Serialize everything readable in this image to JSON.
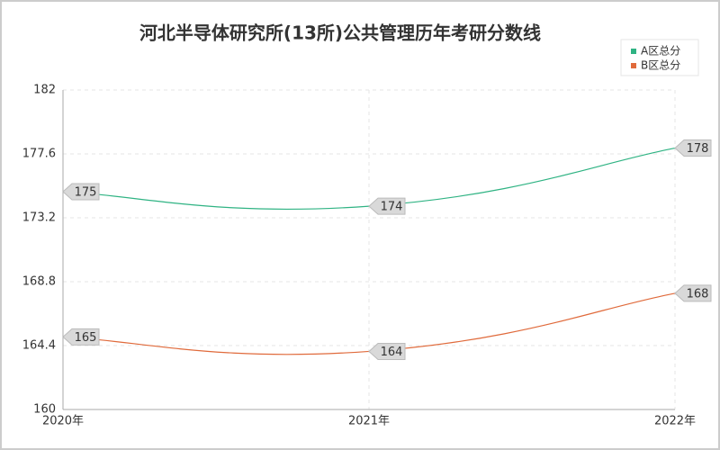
{
  "chart_data": {
    "type": "line",
    "title": "河北半导体研究所(13所)公共管理历年考研分数线",
    "categories": [
      "2020年",
      "2021年",
      "2022年"
    ],
    "series": [
      {
        "name": "A区总分",
        "color": "#2fb383",
        "values": [
          175,
          174,
          178
        ]
      },
      {
        "name": "B区总分",
        "color": "#e06a3b",
        "values": [
          165,
          164,
          168
        ]
      }
    ],
    "ylim": [
      160,
      182
    ],
    "yticks": [
      160,
      164.4,
      168.8,
      173.2,
      177.6,
      182
    ],
    "grid": true,
    "legend": "top-right"
  }
}
